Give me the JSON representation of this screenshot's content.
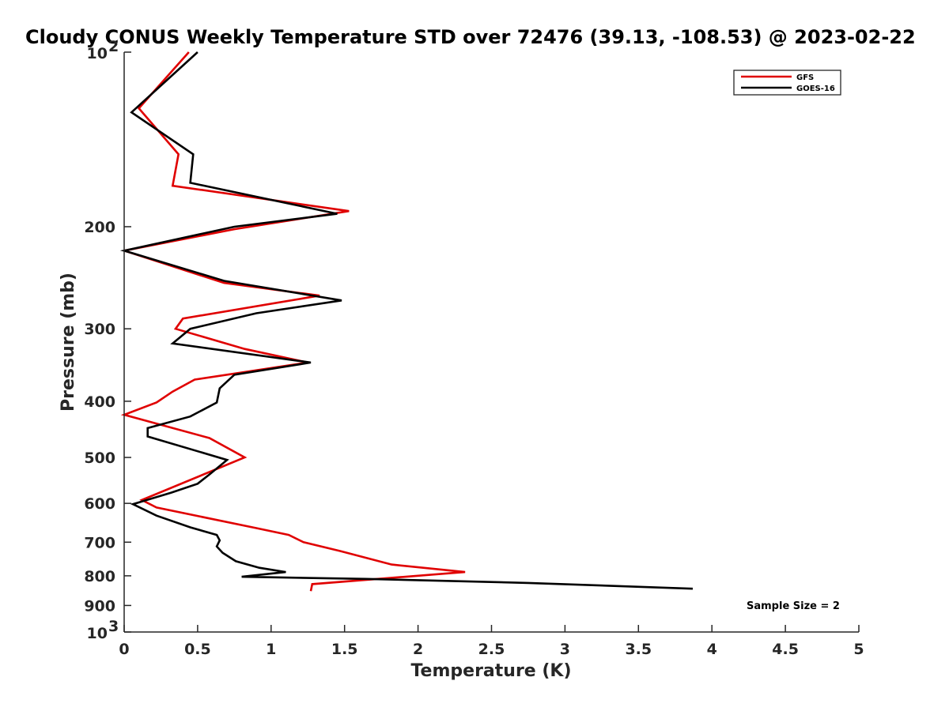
{
  "chart_data": {
    "type": "line",
    "title": "Cloudy CONUS Weekly Temperature STD over 72476 (39.13, -108.53) @ 2023-02-22",
    "xlabel": "Temperature (K)",
    "ylabel": "Pressure (mb)",
    "xlim": [
      0,
      5
    ],
    "ylim": [
      100,
      1000
    ],
    "y_scale": "log",
    "y_reversed": true,
    "grid": false,
    "legend_position": "top-right",
    "x_ticks": [
      0,
      0.5,
      1,
      1.5,
      2,
      2.5,
      3,
      3.5,
      4,
      4.5,
      5
    ],
    "x_tick_labels": [
      "0",
      "0.5",
      "1",
      "1.5",
      "2",
      "2.5",
      "3",
      "3.5",
      "4",
      "4.5",
      "5"
    ],
    "y_ticks": [
      100,
      200,
      300,
      400,
      500,
      600,
      700,
      800,
      900,
      1000
    ],
    "y_tick_labels": [
      {
        "base": "10",
        "exp": "2"
      },
      {
        "base": "200",
        "exp": ""
      },
      {
        "base": "300",
        "exp": ""
      },
      {
        "base": "400",
        "exp": ""
      },
      {
        "base": "500",
        "exp": ""
      },
      {
        "base": "600",
        "exp": ""
      },
      {
        "base": "700",
        "exp": ""
      },
      {
        "base": "800",
        "exp": ""
      },
      {
        "base": "900",
        "exp": ""
      },
      {
        "base": "10",
        "exp": "3"
      }
    ],
    "series": [
      {
        "name": "GFS",
        "color": "#e00000",
        "points": [
          [
            0.44,
            100
          ],
          [
            0.1,
            125
          ],
          [
            0.37,
            150
          ],
          [
            0.33,
            170
          ],
          [
            1.53,
            188
          ],
          [
            0.75,
            202
          ],
          [
            0.0,
            220
          ],
          [
            0.68,
            250
          ],
          [
            1.33,
            263
          ],
          [
            0.4,
            288
          ],
          [
            0.35,
            300
          ],
          [
            0.82,
            325
          ],
          [
            1.25,
            343
          ],
          [
            0.48,
            367
          ],
          [
            0.33,
            385
          ],
          [
            0.22,
            402
          ],
          [
            0.0,
            422
          ],
          [
            0.58,
            463
          ],
          [
            0.82,
            500
          ],
          [
            0.12,
            592
          ],
          [
            0.22,
            610
          ],
          [
            0.9,
            662
          ],
          [
            1.12,
            680
          ],
          [
            1.22,
            700
          ],
          [
            1.47,
            725
          ],
          [
            1.82,
            765
          ],
          [
            2.32,
            788
          ],
          [
            1.28,
            827
          ],
          [
            1.27,
            850
          ]
        ]
      },
      {
        "name": "GOES-16",
        "color": "#000000",
        "points": [
          [
            0.5,
            100
          ],
          [
            0.05,
            127
          ],
          [
            0.47,
            150
          ],
          [
            0.45,
            168
          ],
          [
            1.45,
            190
          ],
          [
            0.75,
            200
          ],
          [
            0.0,
            220
          ],
          [
            0.68,
            248
          ],
          [
            1.48,
            268
          ],
          [
            0.9,
            282
          ],
          [
            0.45,
            300
          ],
          [
            0.33,
            318
          ],
          [
            1.27,
            343
          ],
          [
            0.75,
            360
          ],
          [
            0.65,
            380
          ],
          [
            0.63,
            402
          ],
          [
            0.45,
            425
          ],
          [
            0.16,
            445
          ],
          [
            0.16,
            460
          ],
          [
            0.7,
            505
          ],
          [
            0.58,
            535
          ],
          [
            0.5,
            555
          ],
          [
            0.32,
            575
          ],
          [
            0.06,
            602
          ],
          [
            0.22,
            630
          ],
          [
            0.45,
            660
          ],
          [
            0.63,
            680
          ],
          [
            0.65,
            695
          ],
          [
            0.63,
            712
          ],
          [
            0.67,
            730
          ],
          [
            0.76,
            755
          ],
          [
            0.92,
            775
          ],
          [
            1.1,
            788
          ],
          [
            0.8,
            803
          ],
          [
            1.65,
            810
          ],
          [
            2.75,
            823
          ],
          [
            3.87,
            842
          ]
        ]
      }
    ],
    "annotation": "Sample Size = 2"
  }
}
